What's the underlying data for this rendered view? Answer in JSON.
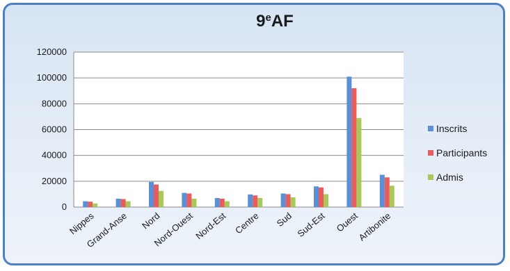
{
  "chart_data": {
    "type": "bar",
    "title": "9eAF",
    "categories": [
      "Nippes",
      "Grand-Anse",
      "Nord",
      "Nord-Ouest",
      "Nord-Est",
      "Centre",
      "Sud",
      "Sud-Est",
      "Ouest",
      "Artibonite"
    ],
    "series": [
      {
        "name": "Inscrits",
        "color": "#5b8fd6",
        "values": [
          4500,
          6500,
          19500,
          11000,
          7000,
          9800,
          10500,
          16000,
          101000,
          25000
        ]
      },
      {
        "name": "Participants",
        "color": "#e85c5c",
        "values": [
          4200,
          6200,
          17500,
          10500,
          6500,
          9000,
          10000,
          15200,
          92000,
          23000
        ]
      },
      {
        "name": "Admis",
        "color": "#a9c85a",
        "values": [
          2800,
          4500,
          12500,
          6500,
          4500,
          7000,
          7500,
          10000,
          69000,
          16500
        ]
      }
    ],
    "ylim": [
      0,
      120000
    ],
    "yticks": [
      0,
      20000,
      40000,
      60000,
      80000,
      100000,
      120000
    ],
    "grid": true,
    "legend_position": "right"
  }
}
